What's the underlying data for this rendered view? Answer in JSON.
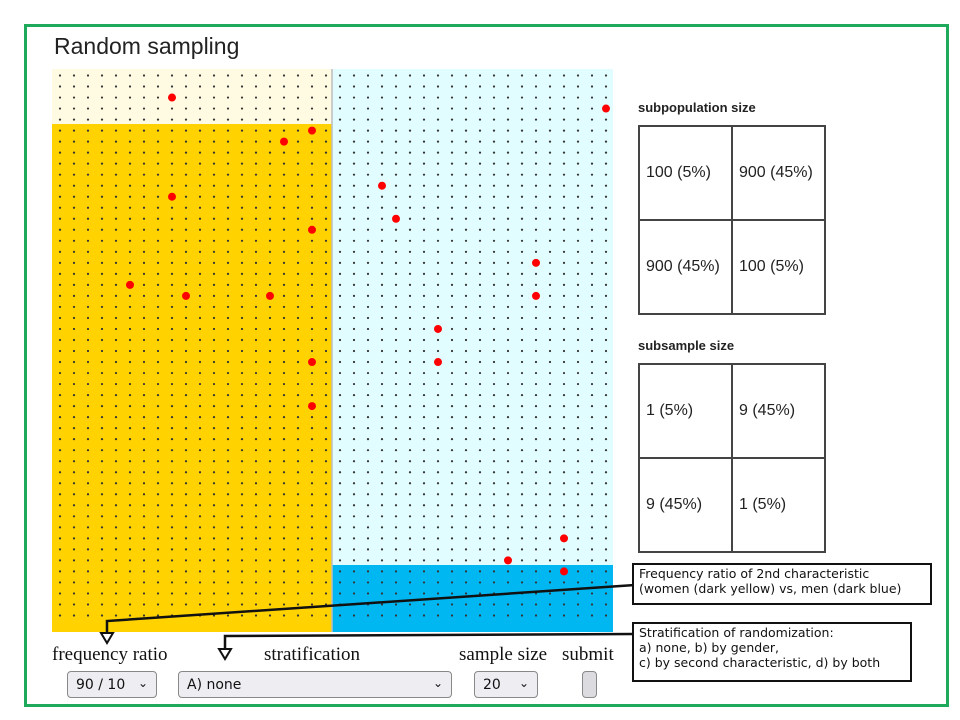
{
  "title": "Random sampling",
  "colors": {
    "frame": "#1ea95b",
    "group_a_minor": "#fffbe3",
    "group_a_major": "#ffd200",
    "group_b_major": "#e2fdff",
    "group_b_minor": "#00b7f1",
    "dot": "#333333",
    "sampled_dot": "#ff0000"
  },
  "population_grid": {
    "columns_per_half": 20,
    "rows": 50,
    "left_half": {
      "minor_rows_top": 5,
      "label": "women"
    },
    "right_half": {
      "minor_rows_bottom": 5,
      "label": "men"
    },
    "sampled": [
      {
        "half": "left",
        "col": 8,
        "row": 2
      },
      {
        "half": "left",
        "col": 18,
        "row": 5
      },
      {
        "half": "left",
        "col": 16,
        "row": 6
      },
      {
        "half": "left",
        "col": 8,
        "row": 11
      },
      {
        "half": "left",
        "col": 18,
        "row": 14
      },
      {
        "half": "left",
        "col": 5,
        "row": 19
      },
      {
        "half": "left",
        "col": 9,
        "row": 20
      },
      {
        "half": "left",
        "col": 15,
        "row": 20
      },
      {
        "half": "left",
        "col": 18,
        "row": 26
      },
      {
        "half": "left",
        "col": 18,
        "row": 30
      },
      {
        "half": "right",
        "col": 19,
        "row": 3
      },
      {
        "half": "right",
        "col": 3,
        "row": 10
      },
      {
        "half": "right",
        "col": 4,
        "row": 13
      },
      {
        "half": "right",
        "col": 14,
        "row": 17
      },
      {
        "half": "right",
        "col": 14,
        "row": 20
      },
      {
        "half": "right",
        "col": 7,
        "row": 23
      },
      {
        "half": "right",
        "col": 7,
        "row": 26
      },
      {
        "half": "right",
        "col": 16,
        "row": 42
      },
      {
        "half": "right",
        "col": 12,
        "row": 44
      },
      {
        "half": "right",
        "col": 16,
        "row": 45
      }
    ]
  },
  "subpopulation": {
    "label": "subpopulation size",
    "cells": [
      [
        "100 (5%)",
        "900 (45%)"
      ],
      [
        "900 (45%)",
        "100 (5%)"
      ]
    ]
  },
  "subsample": {
    "label": "subsample size",
    "cells": [
      [
        "1 (5%)",
        "9 (45%)"
      ],
      [
        "9 (45%)",
        "1 (5%)"
      ]
    ]
  },
  "controls": {
    "frequency_ratio": {
      "label": "frequency ratio",
      "value": "90 / 10"
    },
    "stratification": {
      "label": "stratification",
      "value": "A) none"
    },
    "sample_size": {
      "label": "sample size",
      "value": "20"
    },
    "submit": {
      "label": "submit"
    },
    "chevron": "⌄"
  },
  "annotations": {
    "frequency_note": [
      "Frequency ratio of 2nd characteristic",
      "(women (dark yellow) vs, men (dark blue)"
    ],
    "stratification_note": [
      "Stratification of randomization:",
      "a) none, b) by gender,",
      "c) by second characteristic, d) by both"
    ]
  }
}
